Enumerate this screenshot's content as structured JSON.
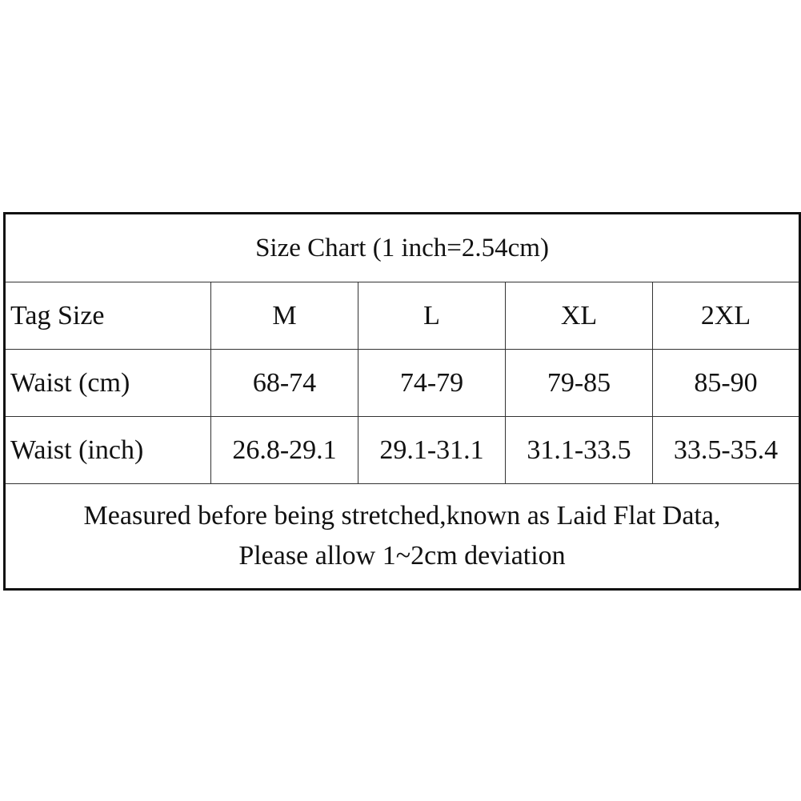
{
  "table": {
    "title": "Size Chart (1 inch=2.54cm)",
    "header": [
      "Tag Size",
      "M",
      "L",
      "XL",
      "2XL"
    ],
    "rows": [
      [
        "Waist (cm)",
        "68-74",
        "74-79",
        "79-85",
        "85-90"
      ],
      [
        "Waist (inch)",
        "26.8-29.1",
        "29.1-31.1",
        "31.1-33.5",
        "33.5-35.4"
      ]
    ],
    "note": [
      "Measured before being stretched,known as Laid Flat Data,",
      "Please allow 1~2cm deviation"
    ]
  }
}
